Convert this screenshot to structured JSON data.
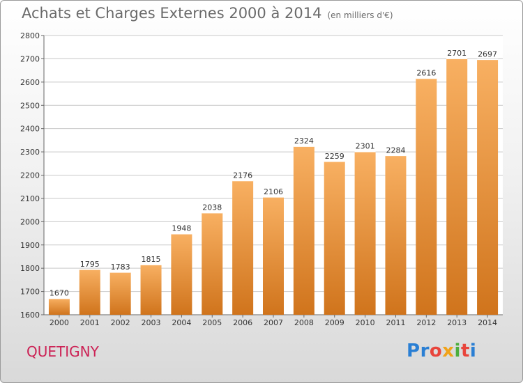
{
  "header": {
    "title": "Achats et Charges Externes 2000 à 2014",
    "subtitle": "(en milliers d'€)"
  },
  "location": "QUETIGNY",
  "brand": {
    "name": "Proxiti",
    "letters": [
      {
        "char": "P",
        "color": "#2a7fd4"
      },
      {
        "char": "r",
        "color": "#2a7fd4"
      },
      {
        "char": "o",
        "color": "#e8453c"
      },
      {
        "char": "x",
        "color": "#f0a31a"
      },
      {
        "char": "i",
        "color": "#4cae3d"
      },
      {
        "char": "t",
        "color": "#e8453c"
      },
      {
        "char": "i",
        "color": "#2a7fd4"
      }
    ]
  },
  "colors": {
    "bar_light": "#f8b062",
    "bar_dark": "#d0741c",
    "grid": "#c8c8c8",
    "axis_text": "#333333",
    "label_text": "#333333",
    "plot_bg": "#ffffff"
  },
  "chart_data": {
    "type": "bar",
    "categories": [
      "2000",
      "2001",
      "2002",
      "2003",
      "2004",
      "2005",
      "2006",
      "2007",
      "2008",
      "2009",
      "2010",
      "2011",
      "2012",
      "2013",
      "2014"
    ],
    "values": [
      1670,
      1795,
      1783,
      1815,
      1948,
      2038,
      2176,
      2106,
      2324,
      2259,
      2301,
      2284,
      2616,
      2701,
      2697
    ],
    "ylim": [
      1600,
      2800
    ],
    "yticks": [
      1600,
      1700,
      1800,
      1900,
      2000,
      2100,
      2200,
      2300,
      2400,
      2500,
      2600,
      2700,
      2800
    ],
    "grid": true,
    "show_data_labels": true
  }
}
